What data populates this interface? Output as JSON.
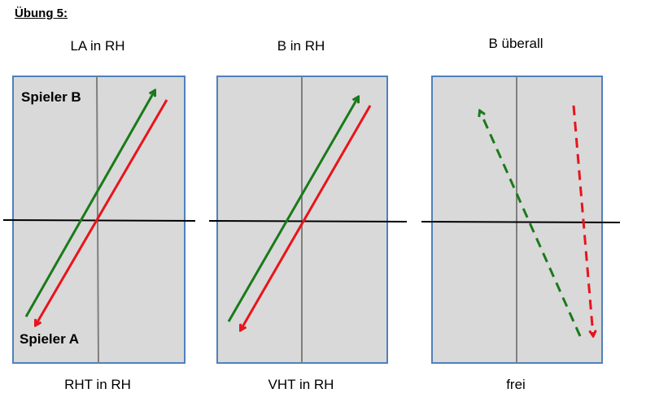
{
  "title": "Übung 5:",
  "panels": [
    {
      "top_caption": "LA in RH",
      "bottom_caption": "RHT in RH",
      "player_top_label": "Spieler B",
      "player_bottom_label": "Spieler A"
    },
    {
      "top_caption": "B in RH",
      "bottom_caption": "VHT in RH"
    },
    {
      "top_caption": "B überall",
      "bottom_caption": "frei"
    }
  ],
  "colors": {
    "court_fill": "#d9d9d9",
    "court_border": "#4f81bd",
    "center_line": "#7f7f7f",
    "net_line": "#000000",
    "green_arrow": "#1a7a1a",
    "red_arrow": "#e8141c"
  }
}
